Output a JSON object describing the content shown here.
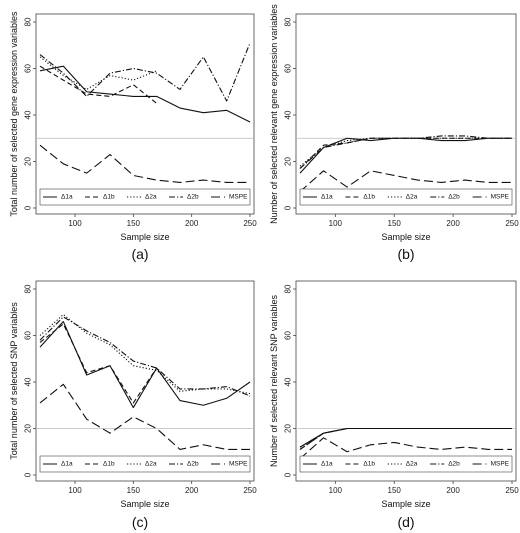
{
  "chart_data": [
    {
      "type": "line",
      "caption": "(a)",
      "xlabel": "Sample size",
      "ylabel": "Total number of selected gene expression variables",
      "xlim": [
        70,
        250
      ],
      "ylim": [
        0,
        80
      ],
      "x_ticks": [
        100,
        150,
        200,
        250
      ],
      "y_ticks": [
        0,
        20,
        40,
        60,
        80
      ],
      "reference_line": 30,
      "legend_position": "bottom",
      "x": [
        70,
        90,
        110,
        130,
        150,
        170,
        190,
        210,
        230,
        250
      ],
      "series": [
        {
          "name": "Δ1a",
          "dash": "solid",
          "values": [
            59,
            61,
            50,
            49,
            48,
            48,
            43,
            41,
            42,
            37
          ]
        },
        {
          "name": "Δ1b",
          "dash": "dashed-short",
          "values": [
            61,
            55,
            49,
            48,
            53,
            45,
            null,
            null,
            null,
            null
          ]
        },
        {
          "name": "Δ2a",
          "dash": "dotted",
          "values": [
            65,
            57,
            51,
            57,
            55,
            59,
            null,
            null,
            null,
            null
          ]
        },
        {
          "name": "Δ2b",
          "dash": "dashdot",
          "values": [
            66,
            58,
            48,
            58,
            60,
            58,
            51,
            65,
            46,
            71
          ]
        },
        {
          "name": "MSPE",
          "dash": "dashed-long",
          "values": [
            27,
            19,
            15,
            23,
            14,
            12,
            11,
            12,
            11,
            11
          ]
        }
      ]
    },
    {
      "type": "line",
      "caption": "(b)",
      "xlabel": "Sample size",
      "ylabel": "Number of selected relevant gene expression variables",
      "xlim": [
        70,
        250
      ],
      "ylim": [
        0,
        80
      ],
      "x_ticks": [
        100,
        150,
        200,
        250
      ],
      "y_ticks": [
        0,
        20,
        40,
        60,
        80
      ],
      "reference_line": 30,
      "legend_position": "bottom",
      "x": [
        70,
        90,
        110,
        130,
        150,
        170,
        190,
        210,
        230,
        250
      ],
      "series": [
        {
          "name": "Δ1a",
          "dash": "solid",
          "values": [
            15,
            26,
            30,
            29,
            30,
            30,
            29,
            29,
            30,
            30
          ]
        },
        {
          "name": "Δ1b",
          "dash": "dashed-short",
          "values": [
            17,
            27,
            28,
            30,
            30,
            30,
            30,
            30,
            30,
            30
          ]
        },
        {
          "name": "Δ2a",
          "dash": "dotted",
          "values": [
            18,
            26,
            29,
            30,
            30,
            30,
            30,
            30,
            30,
            30
          ]
        },
        {
          "name": "Δ2b",
          "dash": "dashdot",
          "values": [
            17,
            26,
            28,
            30,
            30,
            30,
            31,
            31,
            30,
            30
          ]
        },
        {
          "name": "MSPE",
          "dash": "dashed-long",
          "values": [
            7,
            16,
            9,
            16,
            14,
            12,
            11,
            12,
            11,
            11
          ]
        }
      ]
    },
    {
      "type": "line",
      "caption": "(c)",
      "xlabel": "Sample size",
      "ylabel": "Total number of selected SNP variables",
      "xlim": [
        70,
        250
      ],
      "ylim": [
        0,
        80
      ],
      "x_ticks": [
        100,
        150,
        200,
        250
      ],
      "y_ticks": [
        0,
        20,
        40,
        60,
        80
      ],
      "reference_line": 20,
      "legend_position": "bottom",
      "x": [
        70,
        90,
        110,
        130,
        150,
        170,
        190,
        210,
        230,
        250
      ],
      "series": [
        {
          "name": "Δ1a",
          "dash": "solid",
          "values": [
            55,
            66,
            43,
            47,
            29,
            46,
            32,
            30,
            33,
            40
          ]
        },
        {
          "name": "Δ1b",
          "dash": "dashed-short",
          "values": [
            57,
            65,
            44,
            47,
            31,
            46,
            null,
            null,
            null,
            null
          ]
        },
        {
          "name": "Δ2a",
          "dash": "dotted",
          "values": [
            60,
            69,
            61,
            56,
            47,
            45,
            36,
            37,
            37,
            35
          ]
        },
        {
          "name": "Δ2b",
          "dash": "dashdot",
          "values": [
            58,
            68,
            62,
            57,
            49,
            46,
            37,
            37,
            38,
            34
          ]
        },
        {
          "name": "MSPE",
          "dash": "dashed-long",
          "values": [
            31,
            39,
            24,
            18,
            25,
            20,
            11,
            13,
            11,
            11
          ]
        }
      ]
    },
    {
      "type": "line",
      "caption": "(d)",
      "xlabel": "Sample size",
      "ylabel": "Number of selected relevant SNP variables",
      "xlim": [
        70,
        250
      ],
      "ylim": [
        0,
        80
      ],
      "x_ticks": [
        100,
        150,
        200,
        250
      ],
      "y_ticks": [
        0,
        20,
        40,
        60,
        80
      ],
      "reference_line": 20,
      "legend_position": "bottom",
      "x": [
        70,
        90,
        110,
        130,
        150,
        170,
        190,
        210,
        230,
        250
      ],
      "series": [
        {
          "name": "Δ1a",
          "dash": "solid",
          "values": [
            12,
            18,
            20,
            20,
            20,
            20,
            20,
            20,
            20,
            20
          ]
        },
        {
          "name": "Δ1b",
          "dash": "dashed-short",
          "values": [
            11,
            18,
            20,
            20,
            20,
            20,
            20,
            20,
            20,
            20
          ]
        },
        {
          "name": "Δ2a",
          "dash": "dotted",
          "values": [
            12,
            18,
            20,
            20,
            20,
            20,
            20,
            20,
            20,
            20
          ]
        },
        {
          "name": "Δ2b",
          "dash": "dashdot",
          "values": [
            11,
            18,
            20,
            20,
            20,
            20,
            20,
            20,
            20,
            20
          ]
        },
        {
          "name": "MSPE",
          "dash": "dashed-long",
          "values": [
            7,
            16,
            10,
            13,
            14,
            12,
            11,
            12,
            11,
            11
          ]
        }
      ]
    }
  ],
  "colors": {
    "line": "#111111",
    "frame": "#444444",
    "reference_line": "#bbbbbb"
  }
}
